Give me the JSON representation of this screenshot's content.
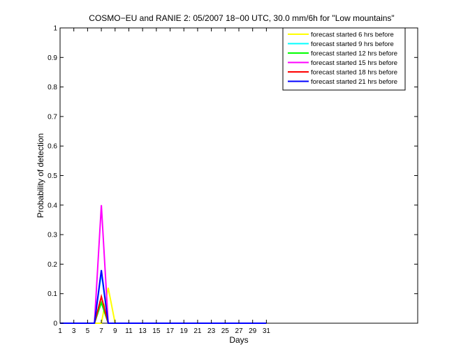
{
  "chart_data": {
    "type": "line",
    "title": "COSMO−EU and RANIE 2: 05/2007 18−00 UTC, 30.0 mm/6h for \"Low mountains\"",
    "xlabel": "Days",
    "ylabel": "Probability of detection",
    "xlim": [
      1,
      53
    ],
    "ylim": [
      0,
      1
    ],
    "x_ticks": [
      1,
      3,
      5,
      7,
      9,
      11,
      13,
      15,
      17,
      19,
      21,
      23,
      25,
      27,
      29,
      31
    ],
    "y_ticks": [
      0,
      0.1,
      0.2,
      0.3,
      0.4,
      0.5,
      0.6,
      0.7,
      0.8,
      0.9,
      1
    ],
    "y_tick_labels": [
      "0",
      "0.1",
      "0.2",
      "0.3",
      "0.4",
      "0.5",
      "0.6",
      "0.7",
      "0.8",
      "0.9",
      "1"
    ],
    "grid": false,
    "legend_position": "top-right",
    "series": [
      {
        "name": "forecast started 6 hrs before",
        "color": "#ffff00",
        "x": [
          1,
          2,
          3,
          4,
          5,
          6,
          7,
          8,
          9,
          10,
          11,
          12,
          13,
          14,
          15,
          16,
          17,
          18,
          19,
          20,
          21,
          22,
          23,
          24,
          25,
          26,
          27,
          28,
          29,
          30,
          31
        ],
        "y": [
          0,
          0,
          0,
          0,
          0,
          0,
          0,
          0.12,
          0,
          0,
          0,
          0,
          0,
          0,
          0,
          0,
          0,
          0,
          0,
          0,
          0,
          0,
          0,
          0,
          0,
          0,
          0,
          0,
          0,
          0,
          0
        ]
      },
      {
        "name": "forecast started 9 hrs before",
        "color": "#00ffff",
        "x": [
          1,
          2,
          3,
          4,
          5,
          6,
          7,
          8,
          9,
          10,
          11,
          12,
          13,
          14,
          15,
          16,
          17,
          18,
          19,
          20,
          21,
          22,
          23,
          24,
          25,
          26,
          27,
          28,
          29,
          30,
          31
        ],
        "y": [
          0,
          0,
          0,
          0,
          0,
          0,
          0.17,
          0,
          0,
          0,
          0,
          0,
          0,
          0,
          0,
          0,
          0,
          0,
          0,
          0,
          0,
          0,
          0,
          0,
          0,
          0,
          0,
          0,
          0,
          0,
          0
        ]
      },
      {
        "name": "forecast started 12 hrs before",
        "color": "#00ff00",
        "x": [
          1,
          2,
          3,
          4,
          5,
          6,
          7,
          8,
          9,
          10,
          11,
          12,
          13,
          14,
          15,
          16,
          17,
          18,
          19,
          20,
          21,
          22,
          23,
          24,
          25,
          26,
          27,
          28,
          29,
          30,
          31
        ],
        "y": [
          0,
          0,
          0,
          0,
          0,
          0,
          0.07,
          0,
          0,
          0,
          0,
          0,
          0,
          0,
          0,
          0,
          0,
          0,
          0,
          0,
          0,
          0,
          0,
          0,
          0,
          0,
          0,
          0,
          0,
          0,
          0
        ]
      },
      {
        "name": "forecast started 15 hrs before",
        "color": "#ff00ff",
        "x": [
          1,
          2,
          3,
          4,
          5,
          6,
          7,
          8,
          9,
          10,
          11,
          12,
          13,
          14,
          15,
          16,
          17,
          18,
          19,
          20,
          21,
          22,
          23,
          24,
          25,
          26,
          27,
          28,
          29,
          30,
          31
        ],
        "y": [
          0,
          0,
          0,
          0,
          0,
          0,
          0.4,
          0,
          0,
          0,
          0,
          0,
          0,
          0,
          0,
          0,
          0,
          0,
          0,
          0,
          0,
          0,
          0,
          0,
          0,
          0,
          0,
          0,
          0,
          0,
          0
        ]
      },
      {
        "name": "forecast started 18 hrs before",
        "color": "#ff0000",
        "x": [
          1,
          2,
          3,
          4,
          5,
          6,
          7,
          8,
          9,
          10,
          11,
          12,
          13,
          14,
          15,
          16,
          17,
          18,
          19,
          20,
          21,
          22,
          23,
          24,
          25,
          26,
          27,
          28,
          29,
          30,
          31
        ],
        "y": [
          0,
          0,
          0,
          0,
          0,
          0,
          0.09,
          0,
          0,
          0,
          0,
          0,
          0,
          0,
          0,
          0,
          0,
          0,
          0,
          0,
          0,
          0,
          0,
          0,
          0,
          0,
          0,
          0,
          0,
          0,
          0
        ]
      },
      {
        "name": "forecast started 21 hrs before",
        "color": "#0000ff",
        "x": [
          1,
          2,
          3,
          4,
          5,
          6,
          7,
          8,
          9,
          10,
          11,
          12,
          13,
          14,
          15,
          16,
          17,
          18,
          19,
          20,
          21,
          22,
          23,
          24,
          25,
          26,
          27,
          28,
          29,
          30,
          31
        ],
        "y": [
          0,
          0,
          0,
          0,
          0,
          0,
          0.18,
          0,
          0,
          0,
          0,
          0,
          0,
          0,
          0,
          0,
          0,
          0,
          0,
          0,
          0,
          0,
          0,
          0,
          0,
          0,
          0,
          0,
          0,
          0,
          0
        ]
      }
    ]
  }
}
